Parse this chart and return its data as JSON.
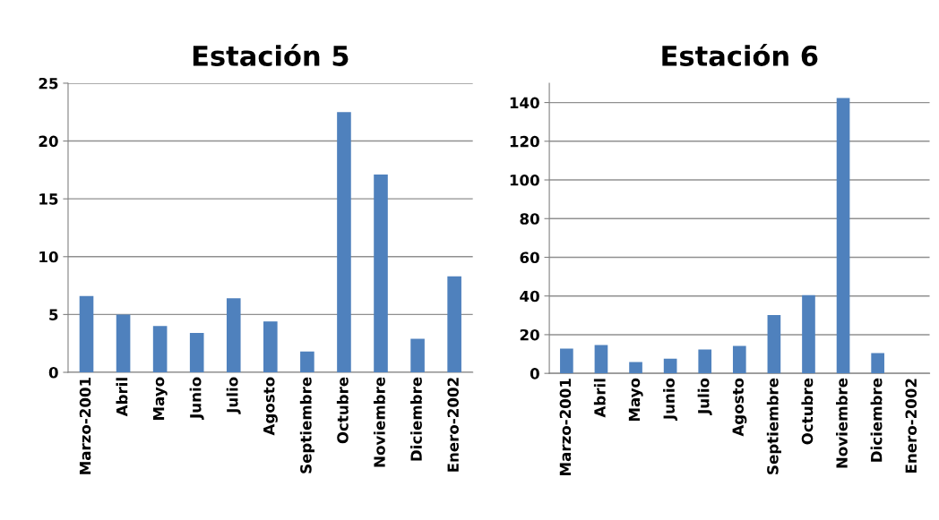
{
  "chart_data": [
    {
      "type": "bar",
      "title": "Estación 5",
      "categories": [
        "Marzo-2001",
        "Abril",
        "Mayo",
        "Junio",
        "Julio",
        "Agosto",
        "Septiembre",
        "Octubre",
        "Noviembre",
        "Diciembre",
        "Enero-2002"
      ],
      "values": [
        6.6,
        5.0,
        4.0,
        3.4,
        6.4,
        4.4,
        1.8,
        22.5,
        17.1,
        2.9,
        8.3
      ],
      "color": "#4f81bd",
      "ylim": [
        0,
        25
      ],
      "yticks": [
        0,
        5,
        10,
        15,
        20,
        25
      ],
      "grid": "y",
      "legend": false
    },
    {
      "type": "bar",
      "title": "Estación 6",
      "categories": [
        "Marzo-2001",
        "Abril",
        "Mayo",
        "Junio",
        "Julio",
        "Agosto",
        "Septiembre",
        "Octubre",
        "Noviembre",
        "Diciembre",
        "Enero-2002"
      ],
      "values": [
        12.8,
        14.7,
        5.9,
        7.6,
        12.3,
        14.2,
        30.1,
        40.4,
        142.3,
        10.5,
        null
      ],
      "color": "#4f81bd",
      "ylim": [
        0,
        150
      ],
      "yticks": [
        0,
        20,
        40,
        60,
        80,
        100,
        120,
        140
      ],
      "grid": "y",
      "legend": false
    }
  ]
}
